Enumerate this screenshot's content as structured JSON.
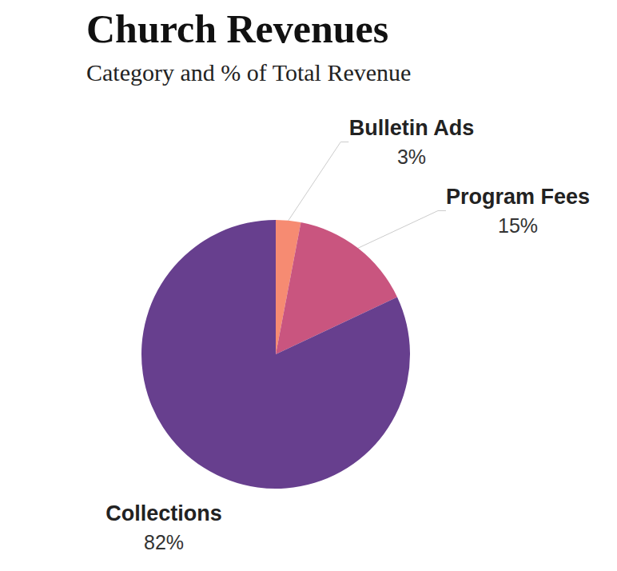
{
  "chart_data": {
    "type": "pie",
    "title": "Church Revenues",
    "subtitle": "Category and % of Total Revenue",
    "categories": [
      "Bulletin Ads",
      "Program Fees",
      "Collections"
    ],
    "values": [
      3,
      15,
      82
    ],
    "value_labels": [
      "3%",
      "15%",
      "82%"
    ],
    "colors": [
      "#f68b72",
      "#c9557f",
      "#673f8e"
    ],
    "data_labels": true
  }
}
